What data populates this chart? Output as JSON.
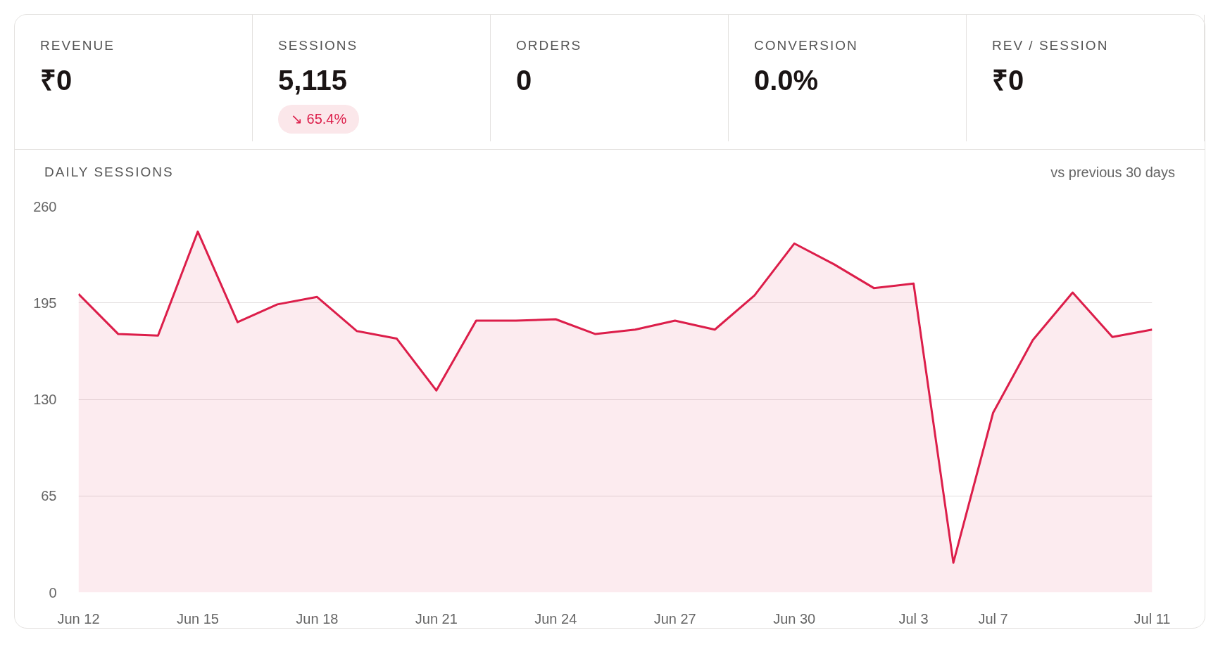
{
  "chart_data": [
    {
      "type": "other",
      "title": "REVENUE",
      "annotations": [
        "₹0"
      ]
    },
    {
      "type": "other",
      "title": "SESSIONS",
      "annotations": [
        "5,115",
        "↘ 65.4%"
      ]
    },
    {
      "type": "other",
      "title": "ORDERS",
      "annotations": [
        "0"
      ]
    },
    {
      "type": "other",
      "title": "CONVERSION",
      "annotations": [
        "0.0%"
      ]
    },
    {
      "type": "other",
      "title": "REV / SESSION",
      "annotations": [
        "₹0"
      ]
    },
    {
      "type": "area",
      "title": "DAILY SESSIONS",
      "subtitle": "vs previous 30 days",
      "color": "#dc1e4a",
      "categories": [
        "Jun 12",
        null,
        null,
        "Jun 15",
        null,
        null,
        "Jun 18",
        null,
        null,
        "Jun 21",
        null,
        null,
        "Jun 24",
        null,
        null,
        "Jun 27",
        null,
        null,
        "Jun 30",
        null,
        null,
        "Jul 3",
        null,
        "Jul 7",
        null,
        null,
        null,
        "Jul 11"
      ],
      "values": [
        201,
        174,
        173,
        243,
        182,
        194,
        199,
        176,
        171,
        136,
        183,
        183,
        184,
        174,
        177,
        183,
        177,
        200,
        235,
        221,
        205,
        208,
        20,
        121,
        170,
        202,
        172,
        177
      ],
      "ylim": [
        0,
        260
      ],
      "yticks": [
        0,
        65,
        130,
        195,
        260
      ],
      "grid": "y"
    }
  ]
}
